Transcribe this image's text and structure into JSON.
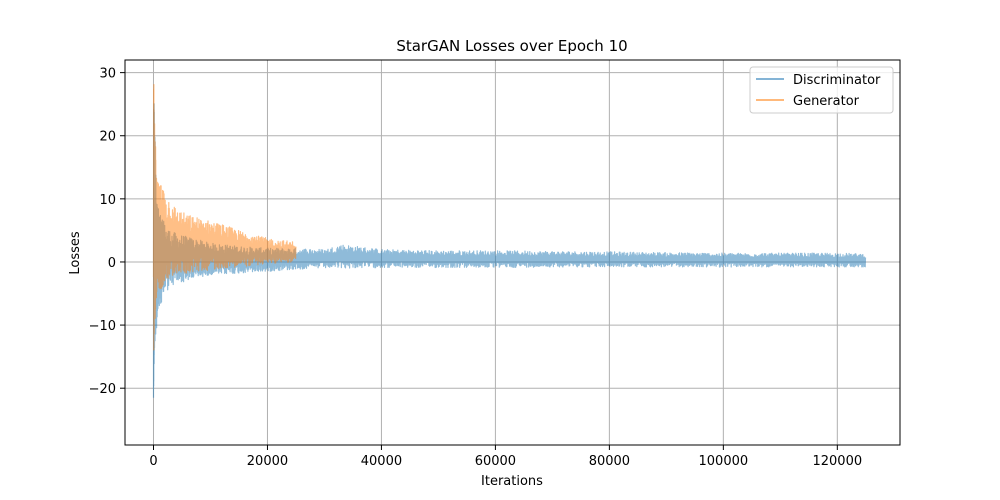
{
  "chart_data": {
    "type": "line",
    "title": "StarGAN Losses over Epoch 10",
    "xlabel": "Iterations",
    "ylabel": "Losses",
    "xlim": [
      -5000,
      131000
    ],
    "ylim": [
      -29,
      32
    ],
    "xticks": [
      0,
      20000,
      40000,
      60000,
      80000,
      100000,
      120000
    ],
    "yticks": [
      -20,
      -10,
      0,
      10,
      20,
      30
    ],
    "grid": true,
    "legend_position": "upper right",
    "series": [
      {
        "name": "Discriminator",
        "color": "#1f77b4",
        "alpha": 0.5,
        "x": [
          0,
          100,
          200,
          400,
          600,
          1000,
          1500,
          2000,
          3000,
          4000,
          6000,
          8000,
          10000,
          12000,
          15000,
          18000,
          20000,
          25000,
          30000,
          33000,
          40000,
          50000,
          60000,
          70000,
          80000,
          90000,
          100000,
          110000,
          120000,
          125000
        ],
        "upper": [
          22,
          27,
          25,
          15,
          10,
          8,
          7,
          6,
          5,
          4.5,
          4,
          3.5,
          3,
          2.8,
          2.5,
          2.3,
          2.2,
          2.2,
          2.0,
          2.8,
          2.0,
          1.8,
          1.8,
          1.7,
          1.6,
          1.5,
          1.4,
          1.4,
          1.4,
          1.3
        ],
        "lower": [
          -27,
          -22,
          -15,
          -12,
          -10,
          -8,
          -6,
          -5,
          -4,
          -3.5,
          -3,
          -2.5,
          -2,
          -2,
          -1.8,
          -1.6,
          -1.5,
          -1.2,
          -1.0,
          -1.0,
          -0.9,
          -0.9,
          -0.9,
          -0.8,
          -0.8,
          -0.8,
          -0.8,
          -0.8,
          -0.8,
          -0.8
        ]
      },
      {
        "name": "Generator",
        "color": "#ff7f0e",
        "alpha": 0.5,
        "x": [
          0,
          100,
          200,
          400,
          600,
          1000,
          1500,
          2000,
          3000,
          4000,
          6000,
          8000,
          10000,
          12000,
          15000,
          18000,
          20000,
          22000,
          25000
        ],
        "upper": [
          29,
          28,
          22,
          18,
          13,
          12,
          12.5,
          11,
          10,
          8.5,
          7.5,
          7.0,
          6.5,
          6.0,
          5.0,
          4.2,
          3.8,
          3.5,
          3.2
        ],
        "lower": [
          -15,
          -14,
          -11,
          -8,
          -6,
          -5,
          -4,
          -3,
          -2.5,
          -2,
          -1.8,
          -1.5,
          -1.3,
          -1.0,
          -0.8,
          -0.5,
          -0.3,
          -0.2,
          0.0
        ]
      }
    ]
  }
}
